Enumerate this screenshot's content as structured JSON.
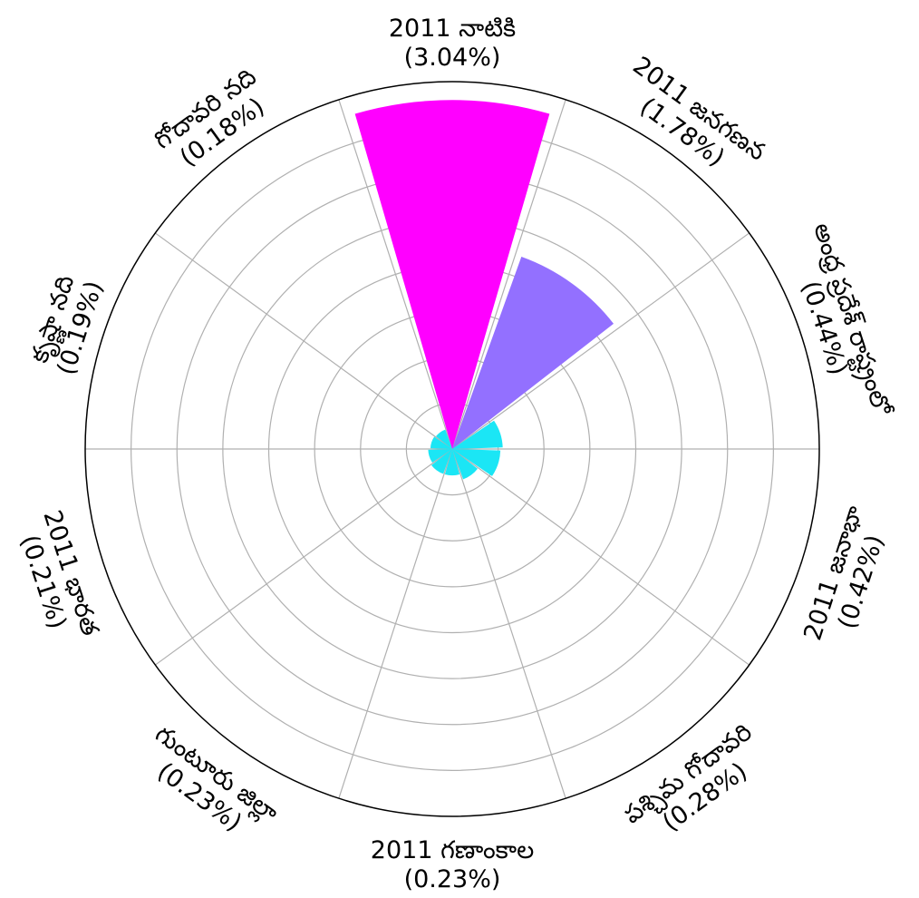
{
  "chart_data": {
    "type": "polar-bar",
    "title": "",
    "colors": {
      "high": "#ff00ff",
      "mid": "#9370ff",
      "low": "#1be6f5"
    },
    "grid": true,
    "rlim": [
      0,
      3.2
    ],
    "r_ticks": [
      0.4,
      0.8,
      1.2,
      1.6,
      2.0,
      2.4,
      2.8
    ],
    "categories": [
      {
        "name": "2011 నాటికి",
        "value_label": "(3.04%)",
        "value": 3.04
      },
      {
        "name": "2011 జనగణన",
        "value_label": "(1.78%)",
        "value": 1.78
      },
      {
        "name": "అంధ్ర ప్రదేశ్ రాష్ట్రంలో",
        "value_label": "(0.44%)",
        "value": 0.44
      },
      {
        "name": "2011 జనాభా",
        "value_label": "(0.42%)",
        "value": 0.42
      },
      {
        "name": "పశ్చిమ గోదావరి",
        "value_label": "(0.28%)",
        "value": 0.28
      },
      {
        "name": "2011 గణాంకాల",
        "value_label": "(0.23%)",
        "value": 0.23
      },
      {
        "name": "గుంటూరు జిల్లా",
        "value_label": "(0.23%)",
        "value": 0.23
      },
      {
        "name": "2011 భారత",
        "value_label": "(0.21%)",
        "value": 0.21
      },
      {
        "name": "కృష్ణా నది",
        "value_label": "(0.19%)",
        "value": 0.19
      },
      {
        "name": "గోదావరి నది",
        "value_label": "(0.18%)",
        "value": 0.18
      }
    ]
  }
}
